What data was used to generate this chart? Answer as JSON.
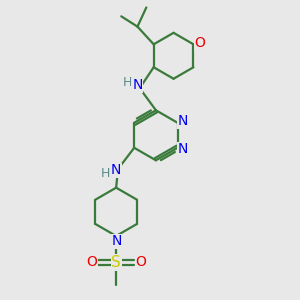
{
  "background_color": "#e8e8e8",
  "bond_color": "#3a7a3a",
  "N_color": "#0000ee",
  "O_color": "#ee0000",
  "S_color": "#cccc00",
  "NH_color": "#5a8a8a",
  "line_width": 1.6,
  "figsize": [
    3.0,
    3.0
  ],
  "dpi": 100,
  "xlim": [
    0,
    10
  ],
  "ylim": [
    0,
    10
  ]
}
